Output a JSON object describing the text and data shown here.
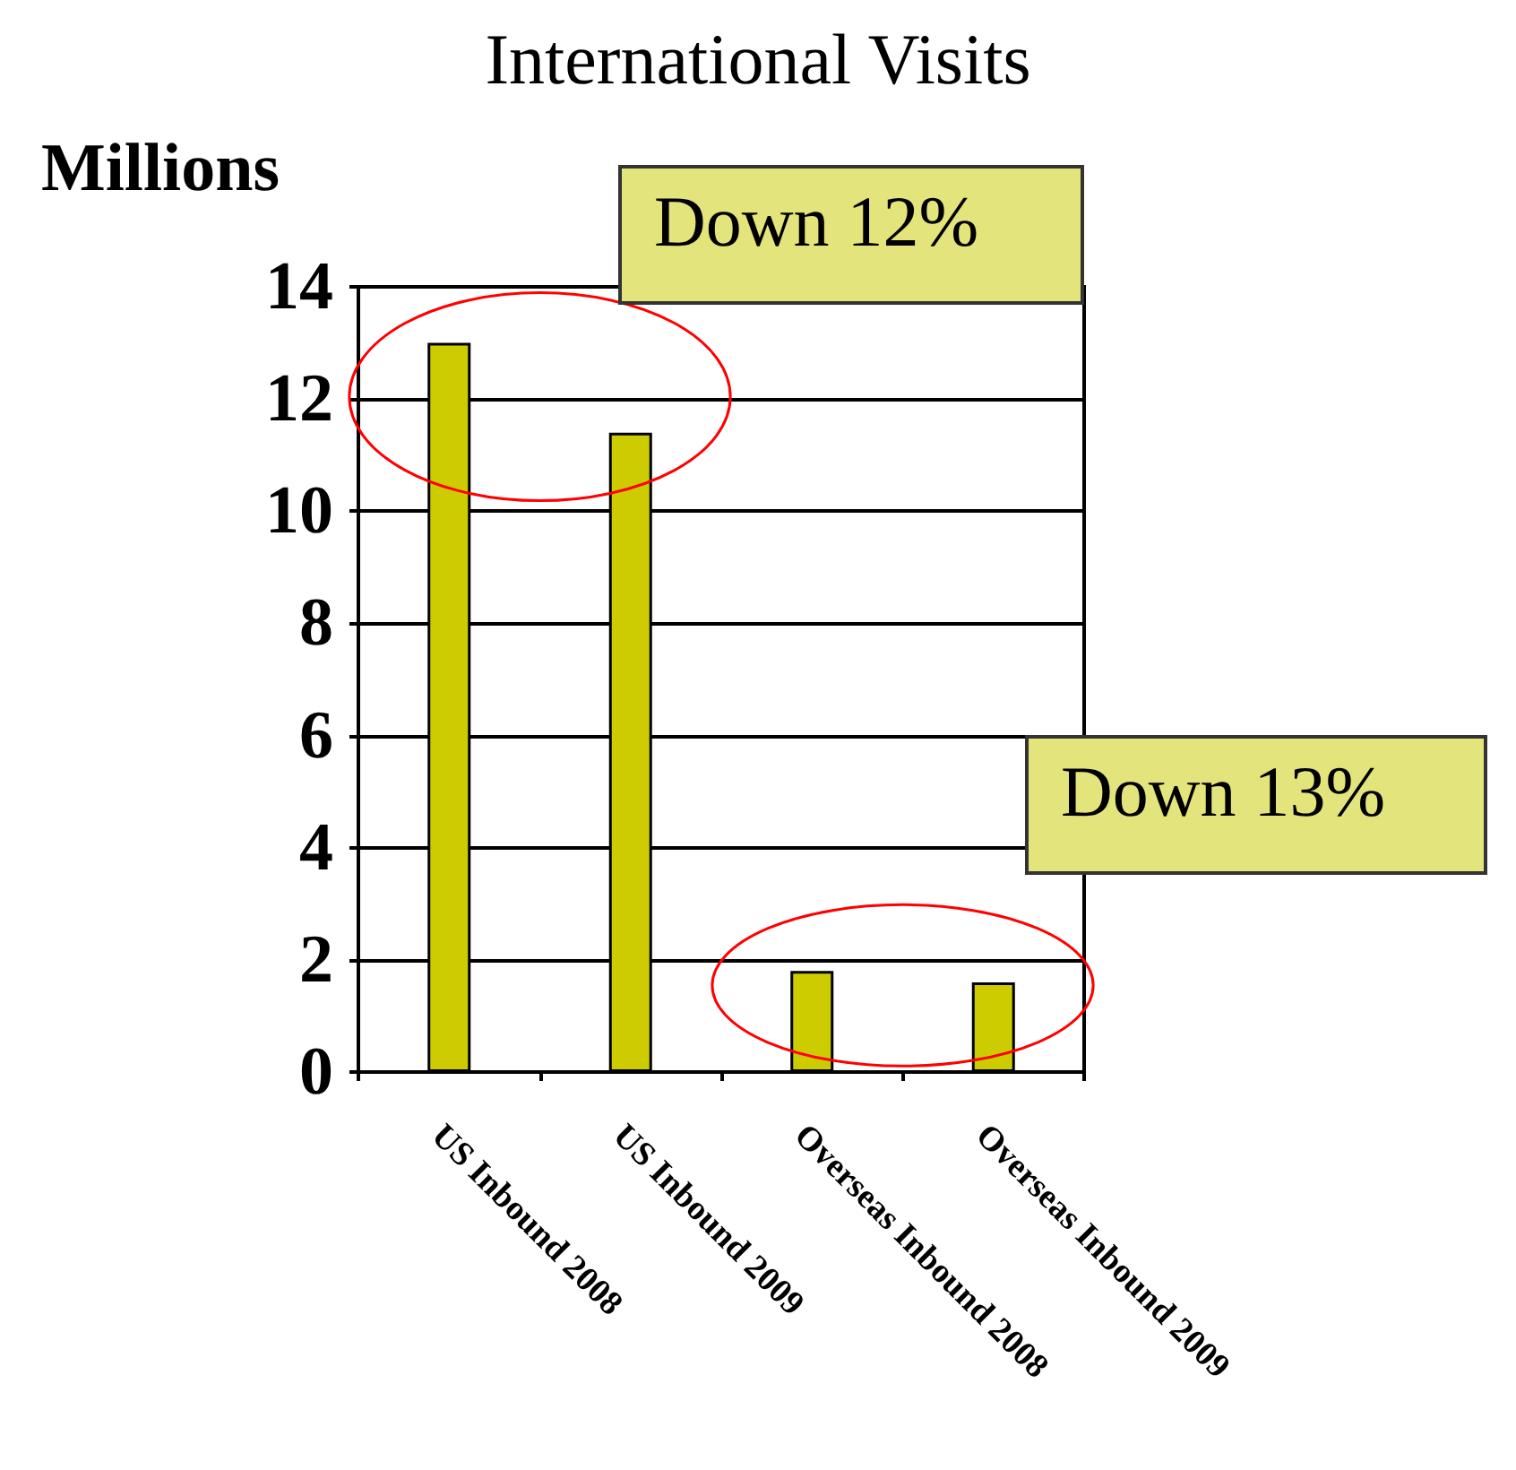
{
  "chart_data": {
    "type": "bar",
    "title": "International Visits",
    "ylabel": "Millions",
    "categories": [
      "US Inbound 2008",
      "US Inbound 2009",
      "Overseas Inbound 2008",
      "Overseas Inbound 2009"
    ],
    "values": [
      13.0,
      11.4,
      1.8,
      1.6
    ],
    "color": "#cccc00",
    "ylim": [
      0,
      14
    ],
    "yticks": [
      0,
      2,
      4,
      6,
      8,
      10,
      12,
      14
    ],
    "grid": "y",
    "annotations": [
      "Down 12%",
      "Down 13%"
    ]
  }
}
